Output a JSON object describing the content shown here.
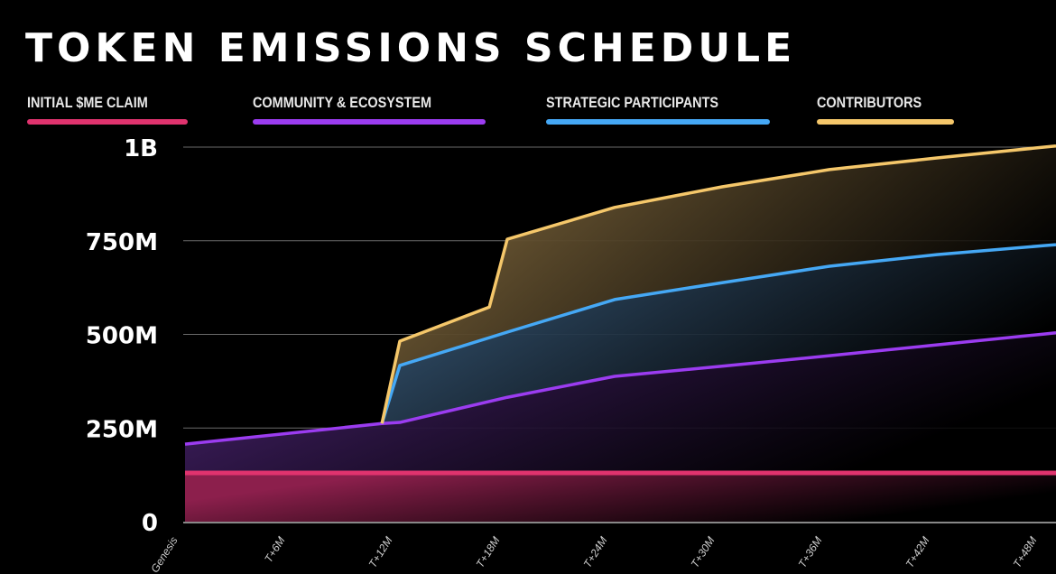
{
  "chart_data": {
    "type": "area",
    "stacked": true,
    "title": "TOKEN EMISSIONS SCHEDULE",
    "x_categories": [
      "Genesis",
      "T+6M",
      "T+12M",
      "T+18M",
      "T+24M",
      "T+30M",
      "T+36M",
      "T+42M",
      "T+48M"
    ],
    "x_unit": "months",
    "y_ticks": [
      {
        "value": 0,
        "label": "0"
      },
      {
        "value": 250,
        "label": "250M"
      },
      {
        "value": 500,
        "label": "500M"
      },
      {
        "value": 750,
        "label": "750M"
      },
      {
        "value": 1000,
        "label": "1B"
      }
    ],
    "y_unit": "millions of tokens (cumulative)",
    "ylim": [
      0,
      1000
    ],
    "grid": true,
    "legend_placement": "top",
    "series": [
      {
        "name": "INITIAL $ME CLAIM",
        "color": "#e0336e",
        "fill": "#8c1f4c",
        "points": [
          [
            0,
            130
          ],
          [
            48,
            130
          ]
        ]
      },
      {
        "name": "COMMUNITY & ECOSYSTEM",
        "color": "#9b3cf0",
        "fill": "#3b1c5a",
        "points": [
          [
            0,
            207
          ],
          [
            11,
            262
          ],
          [
            12,
            265
          ],
          [
            18,
            332
          ],
          [
            24,
            388
          ],
          [
            30,
            415
          ],
          [
            36,
            443
          ],
          [
            42,
            472
          ],
          [
            48,
            501
          ]
        ]
      },
      {
        "name": "STRATEGIC PARTICIPANTS",
        "color": "#45a8f5",
        "fill": "#3c5f80",
        "points": [
          [
            0,
            207
          ],
          [
            11,
            262
          ],
          [
            12,
            417
          ],
          [
            18,
            506
          ],
          [
            24,
            593
          ],
          [
            30,
            638
          ],
          [
            36,
            682
          ],
          [
            42,
            713
          ],
          [
            48,
            737
          ]
        ]
      },
      {
        "name": "CONTRIBUTORS",
        "color": "#f5c76a",
        "fill": "#8a7042",
        "points": [
          [
            0,
            207
          ],
          [
            11,
            262
          ],
          [
            12,
            482
          ],
          [
            17,
            573
          ],
          [
            18,
            754
          ],
          [
            24,
            839
          ],
          [
            30,
            894
          ],
          [
            36,
            940
          ],
          [
            42,
            971
          ],
          [
            48,
            1000
          ]
        ]
      }
    ]
  }
}
